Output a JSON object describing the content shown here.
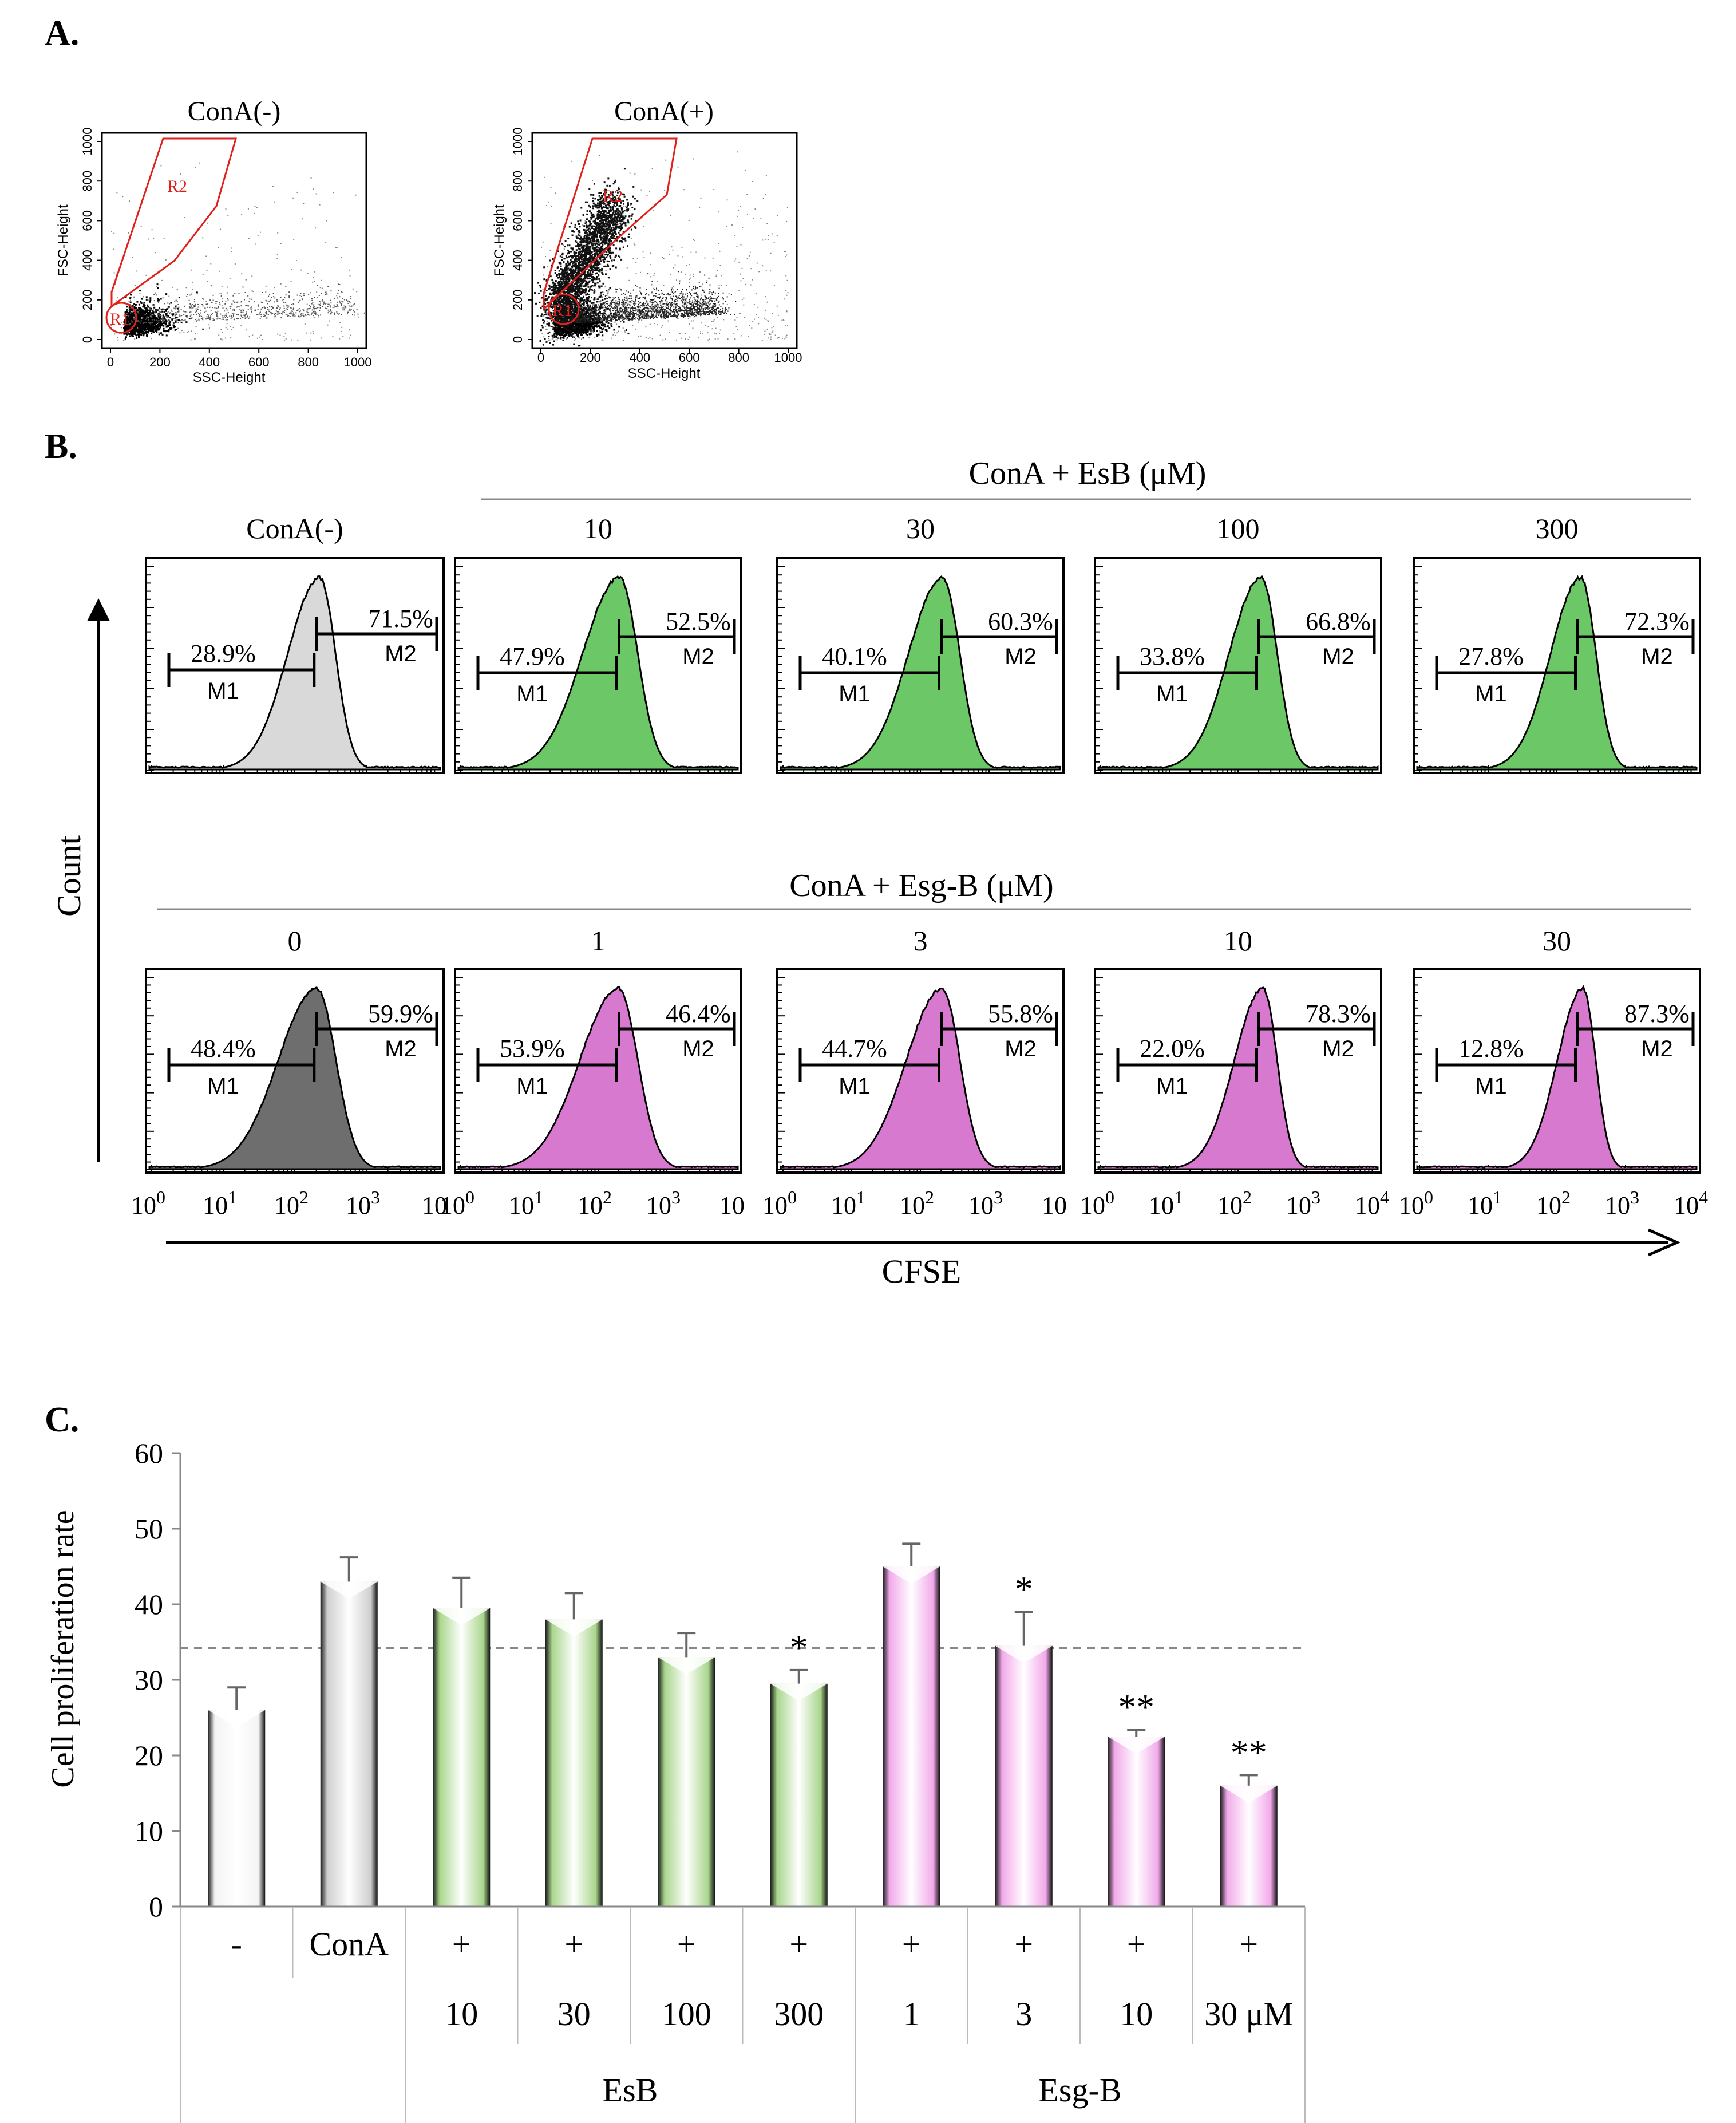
{
  "panel_labels": {
    "a": "A.",
    "b": "B.",
    "c": "C."
  },
  "panel_a": {
    "plots": [
      {
        "title": "ConA(-)",
        "gate_r1": "R1",
        "gate_r2": "R2"
      },
      {
        "title": "ConA(+)",
        "gate_r1": "R1",
        "gate_r2": "R2"
      }
    ],
    "x_axis_label": "SSC-Height",
    "y_axis_label": "FSC-Height",
    "x_ticks": [
      "0",
      "200",
      "400",
      "600",
      "800",
      "1000"
    ],
    "y_ticks": [
      "0",
      "200",
      "400",
      "600",
      "800",
      "1000"
    ]
  },
  "panel_b": {
    "group_top": "ConA + EsB (μM)",
    "group_bottom": "ConA + Esg-B (μM)",
    "y_label": "Count",
    "x_label": "CFSE",
    "gate_m1": "M1",
    "gate_m2": "M2",
    "x_tick_labels": [
      [
        "10^0",
        "10^1",
        "10^2",
        "10^3",
        "10"
      ],
      [
        "10^0",
        "10^1",
        "10^2",
        "10^3",
        "10"
      ],
      [
        "10^0",
        "10^1",
        "10^2",
        "10^3",
        "10"
      ],
      [
        "10^0",
        "10^1",
        "10^2",
        "10^3",
        "10^4"
      ],
      [
        "10^0",
        "10^1",
        "10^2",
        "10^3",
        "10^4"
      ]
    ],
    "row_top": [
      {
        "header": "ConA(-)",
        "m1": "28.9%",
        "m2": "71.5%",
        "color": "#d9d9d9"
      },
      {
        "header": "10",
        "m1": "47.9%",
        "m2": "52.5%",
        "color": "#6cc766"
      },
      {
        "header": "30",
        "m1": "40.1%",
        "m2": "60.3%",
        "color": "#6cc766"
      },
      {
        "header": "100",
        "m1": "33.8%",
        "m2": "66.8%",
        "color": "#6cc766"
      },
      {
        "header": "300",
        "m1": "27.8%",
        "m2": "72.3%",
        "color": "#6cc766"
      }
    ],
    "row_bottom": [
      {
        "header": "0",
        "m1": "48.4%",
        "m2": "59.9%",
        "color": "#6e6e6e"
      },
      {
        "header": "1",
        "m1": "53.9%",
        "m2": "46.4%",
        "color": "#d779cf"
      },
      {
        "header": "3",
        "m1": "44.7%",
        "m2": "55.8%",
        "color": "#d779cf"
      },
      {
        "header": "10",
        "m1": "22.0%",
        "m2": "78.3%",
        "color": "#d779cf"
      },
      {
        "header": "30",
        "m1": "12.8%",
        "m2": "87.3%",
        "color": "#d779cf"
      }
    ]
  },
  "chart_data": {
    "type": "bar",
    "ylabel": "Cell proliferation rate",
    "ylim": [
      0,
      60
    ],
    "yticks": [
      0,
      10,
      20,
      30,
      40,
      50,
      60
    ],
    "reference_line": 34.2,
    "categories": [
      "-",
      "ConA",
      "10",
      "30",
      "100",
      "300",
      "1",
      "3",
      "10",
      "30 μM"
    ],
    "values": [
      26,
      43,
      39.5,
      38,
      33,
      29.5,
      45,
      34.5,
      22.5,
      16
    ],
    "errors": [
      3,
      3.2,
      4,
      3.5,
      3.2,
      1.8,
      3,
      4.5,
      0.9,
      1.4
    ],
    "significance": [
      "",
      "",
      "",
      "",
      "",
      "*",
      "",
      "*",
      "**",
      "**"
    ],
    "bar_colors": [
      "#f4f4f4",
      "#cfcfcf",
      "#a9d68c",
      "#a9d68c",
      "#a9d68c",
      "#a9d68c",
      "#f2a9ea",
      "#f2a9ea",
      "#f2a9ea",
      "#f2a9ea"
    ],
    "table_row_conA": [
      "",
      "ConA",
      "+",
      "+",
      "+",
      "+",
      "+",
      "+",
      "+",
      "+"
    ],
    "table_row_dose": [
      "",
      "",
      "10",
      "30",
      "100",
      "300",
      "1",
      "3",
      "10",
      "30 μM"
    ],
    "group_labels": [
      "EsB",
      "Esg-B"
    ]
  }
}
